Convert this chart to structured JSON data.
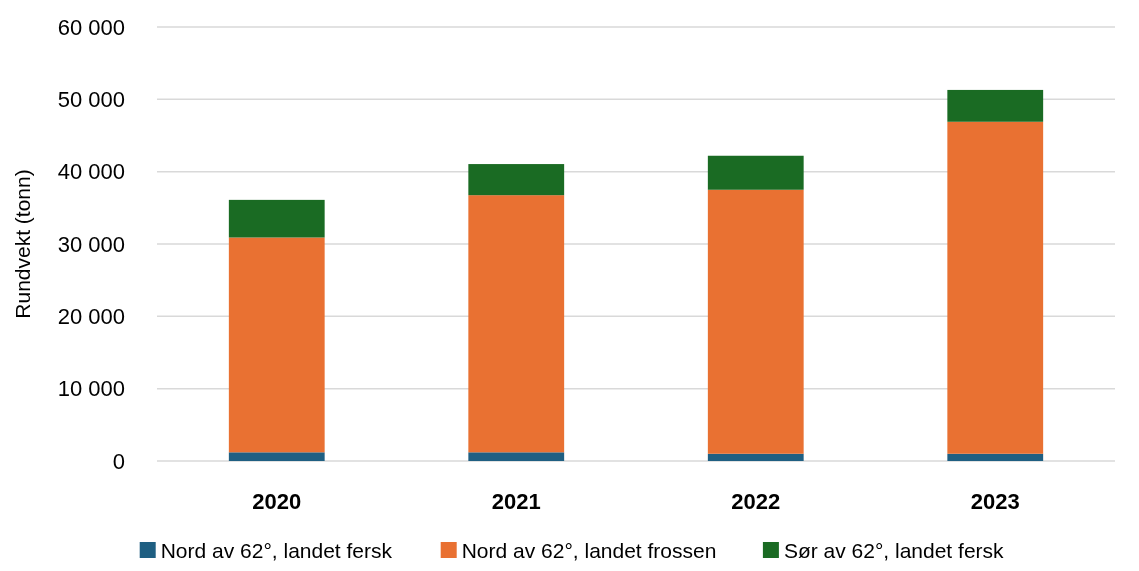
{
  "chart_data": {
    "type": "bar",
    "stacked": true,
    "ylabel": "Rundvekt (tonn)",
    "categories": [
      "2020",
      "2021",
      "2022",
      "2023"
    ],
    "series": [
      {
        "name": "Nord av 62°, landet fersk",
        "color": "#1f5f82",
        "values": [
          1200,
          1200,
          1000,
          1000
        ]
      },
      {
        "name": "Nord av 62°, landet frossen",
        "color": "#e97132",
        "values": [
          29700,
          35550,
          36500,
          45900
        ]
      },
      {
        "name": "Sør av 62°, landet fersk",
        "color": "#1a6b23",
        "values": [
          5200,
          4300,
          4700,
          4400
        ]
      }
    ],
    "ylim": [
      0,
      60000
    ],
    "yticks": [
      {
        "value": 0,
        "label": "0"
      },
      {
        "value": 10000,
        "label": "10 000"
      },
      {
        "value": 20000,
        "label": "20 000"
      },
      {
        "value": 30000,
        "label": "30 000"
      },
      {
        "value": 40000,
        "label": "40 000"
      },
      {
        "value": 50000,
        "label": "50 000"
      },
      {
        "value": 60000,
        "label": "60 000"
      }
    ],
    "grid": "y",
    "legend": "bottom"
  }
}
